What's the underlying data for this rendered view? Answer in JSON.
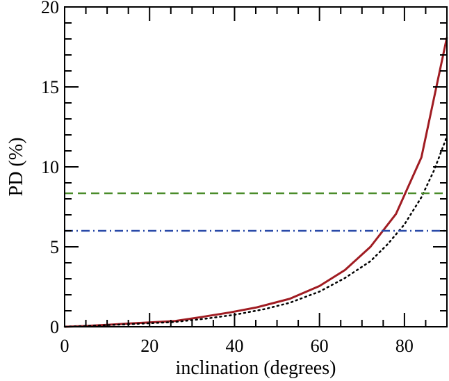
{
  "chart_data": {
    "type": "line",
    "title": "",
    "xlabel": "inclination (degrees)",
    "ylabel": "PD (%)",
    "xlim": [
      0,
      90
    ],
    "ylim": [
      0,
      20
    ],
    "x_ticks": [
      0,
      20,
      40,
      60,
      80
    ],
    "y_ticks": [
      0,
      5,
      10,
      15,
      20
    ],
    "grid": false,
    "legend": "none",
    "series": [
      {
        "color": "#a01c22",
        "line_style": "solid",
        "x": [
          0,
          5,
          10,
          15,
          20,
          26,
          32,
          39,
          45,
          53,
          60,
          66,
          72,
          78,
          84,
          90
        ],
        "y": [
          0.0,
          0.05,
          0.12,
          0.2,
          0.27,
          0.36,
          0.6,
          0.9,
          1.2,
          1.75,
          2.55,
          3.55,
          5.0,
          7.05,
          10.6,
          18.1
        ]
      },
      {
        "color": "#000000",
        "line_style": "dotted",
        "x": [
          0,
          10,
          20,
          26,
          33,
          40,
          47,
          53,
          60,
          66,
          72,
          76,
          80,
          84,
          87,
          90
        ],
        "y": [
          0.0,
          0.1,
          0.22,
          0.3,
          0.5,
          0.75,
          1.1,
          1.5,
          2.2,
          3.05,
          4.1,
          5.15,
          6.4,
          8.1,
          9.8,
          11.9
        ]
      },
      {
        "color": "#4a8c2a",
        "line_style": "dashed",
        "x": [
          0,
          90
        ],
        "y": [
          8.35,
          8.35
        ]
      },
      {
        "color": "#2a4aa8",
        "line_style": "dash-dot",
        "x": [
          0,
          90
        ],
        "y": [
          6.0,
          6.0
        ]
      }
    ]
  }
}
